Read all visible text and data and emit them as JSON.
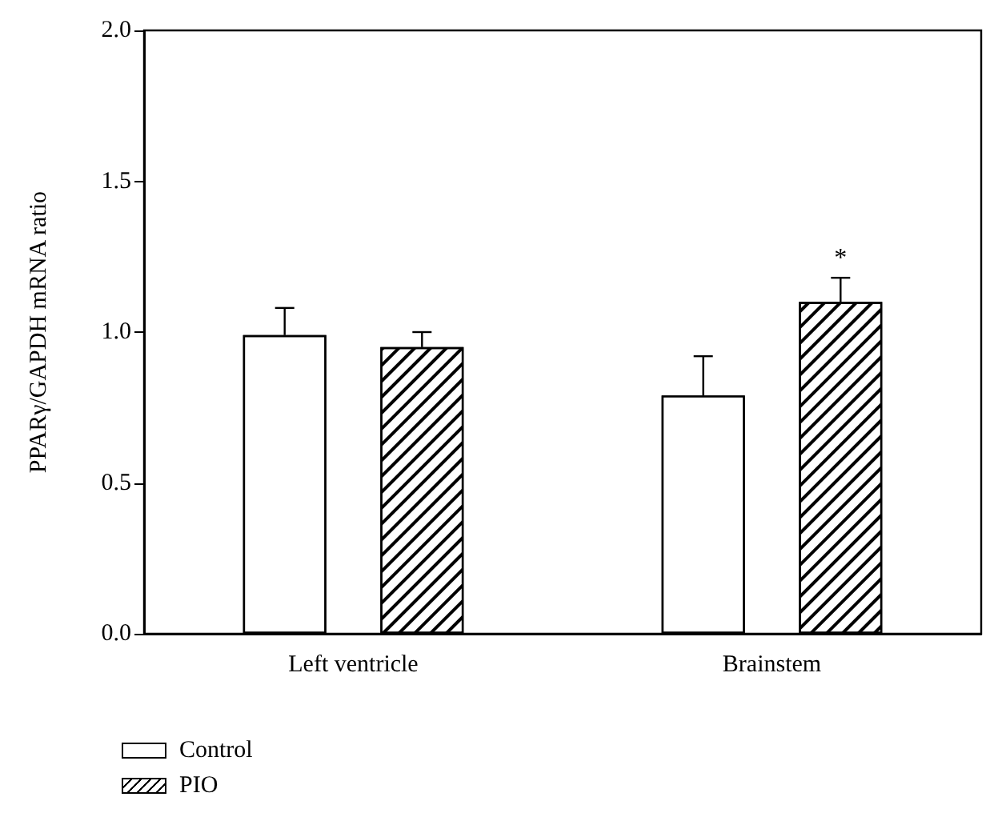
{
  "chart_data": {
    "type": "bar",
    "ylabel": "PPARγ/GAPDH mRNA ratio",
    "categories": [
      "Left ventricle",
      "Brainstem"
    ],
    "series": [
      {
        "name": "Control",
        "color": "#ffffff",
        "values": [
          0.99,
          0.79
        ],
        "errors": [
          0.09,
          0.13
        ]
      },
      {
        "name": "PIO",
        "color": "#000000",
        "values": [
          0.95,
          1.1
        ],
        "errors": [
          0.05,
          0.08
        ]
      }
    ],
    "ylim": [
      0,
      2.0
    ],
    "yticks": [
      {
        "value": 0,
        "label": "0.0"
      },
      0.5,
      {
        "value": 1,
        "label": "1.0"
      },
      1.5,
      {
        "value": 2,
        "label": "2.0"
      }
    ],
    "annotations": [
      "*"
    ],
    "legend": "bottom left",
    "grid": false
  }
}
